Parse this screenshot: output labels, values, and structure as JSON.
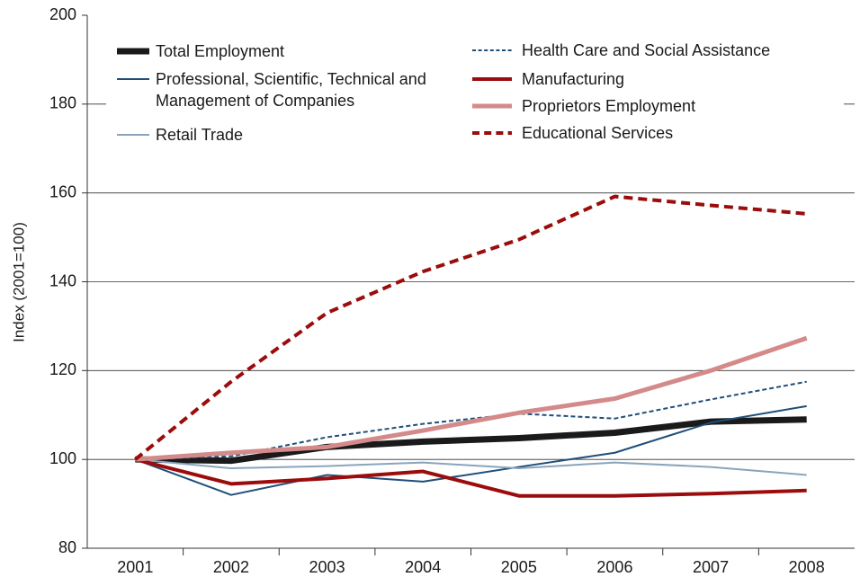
{
  "chart_data": {
    "type": "line",
    "y_label": "Index (2001=100)",
    "categories": [
      "2001",
      "2002",
      "2003",
      "2004",
      "2005",
      "2006",
      "2007",
      "2008"
    ],
    "ylim": [
      80,
      200
    ],
    "yticks": [
      80,
      100,
      120,
      140,
      160,
      180,
      200
    ],
    "grid": true,
    "series": [
      {
        "name": "Total Employment",
        "color": "#1a1a1a",
        "line_width": 7,
        "dash": false,
        "values": [
          100,
          99.7,
          102.8,
          104,
          104.8,
          106,
          108.5,
          109
        ]
      },
      {
        "name": "Professional, Scientific, Technical and Management of Companies",
        "color": "#1f4e79",
        "line_width": 2,
        "dash": false,
        "values": [
          100,
          92,
          96.5,
          95,
          98.3,
          101.5,
          108.3,
          112
        ]
      },
      {
        "name": "Retail Trade",
        "color": "#8aa4bd",
        "line_width": 2,
        "dash": false,
        "values": [
          100,
          98,
          98.5,
          99.3,
          98,
          99.3,
          98.3,
          96.5
        ]
      },
      {
        "name": "Health Care and Social Assistance",
        "color": "#1f4e79",
        "line_width": 2,
        "dash": true,
        "values": [
          100,
          100.7,
          105,
          108,
          110.3,
          109.2,
          113.5,
          117.5
        ]
      },
      {
        "name": "Manufacturing",
        "color": "#9b0c0c",
        "line_width": 4,
        "dash": false,
        "values": [
          100,
          94.5,
          95.7,
          97.3,
          91.8,
          91.8,
          92.3,
          93
        ]
      },
      {
        "name": "Proprietors Employment",
        "color": "#d48a8a",
        "line_width": 5,
        "dash": false,
        "values": [
          100,
          101.5,
          102.8,
          106.5,
          110.5,
          113.7,
          120,
          127.3
        ]
      },
      {
        "name": "Educational Services",
        "color": "#9b0c0c",
        "line_width": 4,
        "dash": true,
        "values": [
          100,
          117.5,
          133,
          142.3,
          149.5,
          159.2,
          157.2,
          155.3
        ]
      }
    ]
  }
}
